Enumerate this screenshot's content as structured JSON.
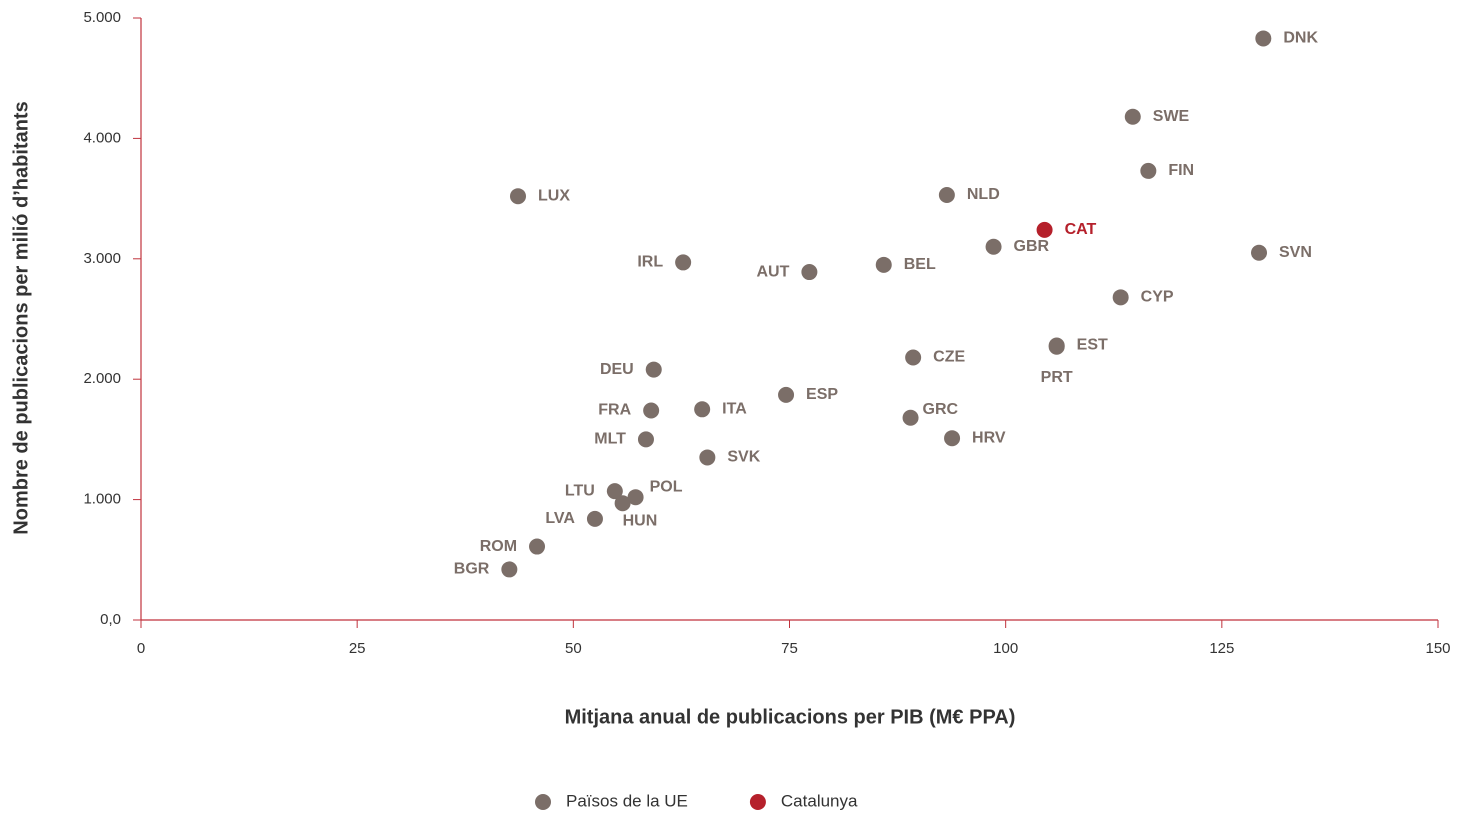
{
  "chart_data": {
    "type": "scatter",
    "xlabel": "Mitjana anual de publicacions per PIB (M€ PPA)",
    "ylabel": "Nombre de publicacions per milió d’habitants",
    "xlim": [
      0,
      150
    ],
    "xticks": [
      0,
      25,
      50,
      75,
      100,
      125,
      150
    ],
    "ylim": [
      0,
      5000
    ],
    "yticks": [
      {
        "value": 0,
        "label": "0,0"
      },
      {
        "value": 1000,
        "label": "1.000"
      },
      {
        "value": 2000,
        "label": "2.000"
      },
      {
        "value": 3000,
        "label": "3.000"
      },
      {
        "value": 4000,
        "label": "4.000"
      },
      {
        "value": 5000,
        "label": "5.000"
      }
    ],
    "legend": "bottom",
    "series": [
      {
        "name": "Països de la UE",
        "color": "#7b6e68",
        "labels": [
          "DNK",
          "SWE",
          "FIN",
          "NLD",
          "LUX",
          "GBR",
          "SVN",
          "IRL",
          "BEL",
          "AUT",
          "CYP",
          "EST",
          "PRT",
          "CZE",
          "DEU",
          "ESP",
          "FRA",
          "ITA",
          "GRC",
          "MLT",
          "HRV",
          "SVK",
          "LTU",
          "POL",
          "HUN",
          "LVA",
          "ROM",
          "BGR"
        ],
        "x": [
          129.8,
          114.7,
          116.5,
          93.2,
          43.6,
          98.6,
          129.3,
          62.7,
          85.9,
          77.3,
          113.3,
          105.9,
          105.9,
          89.3,
          59.3,
          74.6,
          59.0,
          64.9,
          89.0,
          58.4,
          93.8,
          65.5,
          54.8,
          57.2,
          55.7,
          52.5,
          45.8,
          42.6
        ],
        "values": [
          4830,
          4180,
          3730,
          3530,
          3520,
          3100,
          3050,
          2970,
          2950,
          2890,
          2680,
          2280,
          2270,
          2180,
          2080,
          1870,
          1740,
          1750,
          1680,
          1500,
          1510,
          1350,
          1070,
          1020,
          970,
          840,
          610,
          420
        ]
      },
      {
        "name": "Catalunya",
        "color": "#b5202b",
        "labels": [
          "CAT"
        ],
        "x": [
          104.5
        ],
        "values": [
          3240
        ]
      }
    ]
  }
}
